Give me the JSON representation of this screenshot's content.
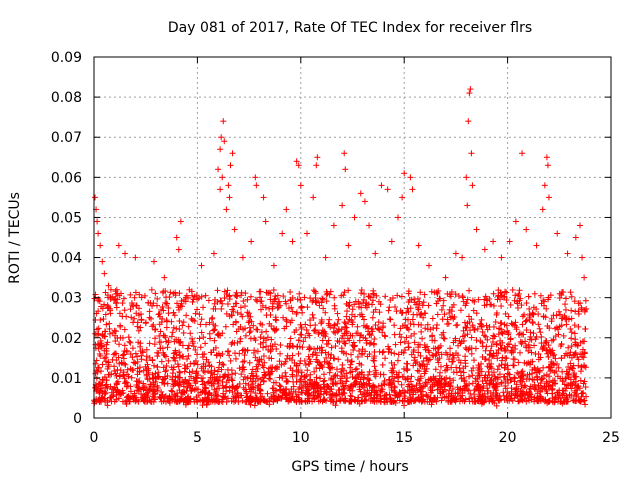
{
  "chart_data": {
    "type": "scatter",
    "title": "Day 081 of 2017, Rate Of TEC Index for receiver flrs",
    "xlabel": "GPS time / hours",
    "ylabel": "ROTI / TECUs",
    "xlim": [
      0,
      25
    ],
    "ylim": [
      0,
      0.09
    ],
    "xticks": [
      "0",
      "5",
      "10",
      "15",
      "20",
      "25"
    ],
    "yticks": [
      "0",
      "0.01",
      "0.02",
      "0.03",
      "0.04",
      "0.05",
      "0.06",
      "0.07",
      "0.08",
      "0.09"
    ],
    "grid": true,
    "marker": "+",
    "color": "#ff0000",
    "data_range_x": [
      0,
      23.8
    ],
    "series": [
      {
        "points": [
          [
            0.05,
            0.055
          ],
          [
            0.1,
            0.052
          ],
          [
            0.15,
            0.049
          ],
          [
            0.2,
            0.046
          ],
          [
            0.3,
            0.043
          ],
          [
            0.4,
            0.039
          ],
          [
            0.5,
            0.036
          ],
          [
            0.7,
            0.033
          ],
          [
            1.2,
            0.043
          ],
          [
            1.5,
            0.041
          ],
          [
            2.0,
            0.04
          ],
          [
            2.9,
            0.039
          ],
          [
            3.4,
            0.035
          ],
          [
            4.2,
            0.049
          ],
          [
            4.0,
            0.045
          ],
          [
            4.1,
            0.042
          ],
          [
            5.2,
            0.038
          ],
          [
            5.8,
            0.041
          ],
          [
            6.0,
            0.062
          ],
          [
            6.1,
            0.067
          ],
          [
            6.15,
            0.07
          ],
          [
            6.25,
            0.074
          ],
          [
            6.3,
            0.069
          ],
          [
            6.2,
            0.06
          ],
          [
            6.1,
            0.057
          ],
          [
            6.4,
            0.052
          ],
          [
            6.5,
            0.058
          ],
          [
            6.6,
            0.063
          ],
          [
            6.7,
            0.066
          ],
          [
            6.55,
            0.055
          ],
          [
            6.8,
            0.047
          ],
          [
            7.2,
            0.04
          ],
          [
            7.6,
            0.044
          ],
          [
            7.8,
            0.06
          ],
          [
            7.85,
            0.058
          ],
          [
            8.2,
            0.055
          ],
          [
            8.3,
            0.049
          ],
          [
            8.7,
            0.038
          ],
          [
            9.1,
            0.046
          ],
          [
            9.3,
            0.052
          ],
          [
            9.6,
            0.044
          ],
          [
            9.8,
            0.064
          ],
          [
            9.9,
            0.063
          ],
          [
            10.0,
            0.058
          ],
          [
            10.3,
            0.046
          ],
          [
            10.6,
            0.055
          ],
          [
            10.8,
            0.065
          ],
          [
            10.75,
            0.063
          ],
          [
            11.2,
            0.04
          ],
          [
            11.6,
            0.048
          ],
          [
            12.0,
            0.053
          ],
          [
            12.1,
            0.066
          ],
          [
            12.15,
            0.062
          ],
          [
            12.3,
            0.043
          ],
          [
            12.6,
            0.05
          ],
          [
            12.9,
            0.056
          ],
          [
            13.1,
            0.054
          ],
          [
            13.3,
            0.048
          ],
          [
            13.6,
            0.041
          ],
          [
            13.9,
            0.058
          ],
          [
            14.2,
            0.057
          ],
          [
            14.4,
            0.044
          ],
          [
            14.7,
            0.05
          ],
          [
            14.9,
            0.055
          ],
          [
            15.0,
            0.061
          ],
          [
            15.3,
            0.06
          ],
          [
            15.4,
            0.057
          ],
          [
            15.7,
            0.043
          ],
          [
            16.2,
            0.038
          ],
          [
            17.0,
            0.035
          ],
          [
            17.5,
            0.041
          ],
          [
            17.8,
            0.04
          ],
          [
            18.0,
            0.06
          ],
          [
            18.05,
            0.053
          ],
          [
            18.1,
            0.074
          ],
          [
            18.15,
            0.081
          ],
          [
            18.2,
            0.082
          ],
          [
            18.25,
            0.066
          ],
          [
            18.3,
            0.058
          ],
          [
            18.5,
            0.047
          ],
          [
            18.9,
            0.042
          ],
          [
            19.3,
            0.044
          ],
          [
            19.7,
            0.04
          ],
          [
            20.1,
            0.044
          ],
          [
            20.4,
            0.049
          ],
          [
            20.7,
            0.066
          ],
          [
            20.9,
            0.047
          ],
          [
            21.4,
            0.043
          ],
          [
            21.7,
            0.052
          ],
          [
            21.8,
            0.058
          ],
          [
            21.9,
            0.065
          ],
          [
            21.95,
            0.063
          ],
          [
            22.0,
            0.055
          ],
          [
            22.4,
            0.046
          ],
          [
            22.9,
            0.041
          ],
          [
            23.3,
            0.045
          ],
          [
            23.5,
            0.048
          ],
          [
            23.6,
            0.04
          ],
          [
            23.7,
            0.035
          ]
        ]
      }
    ]
  }
}
